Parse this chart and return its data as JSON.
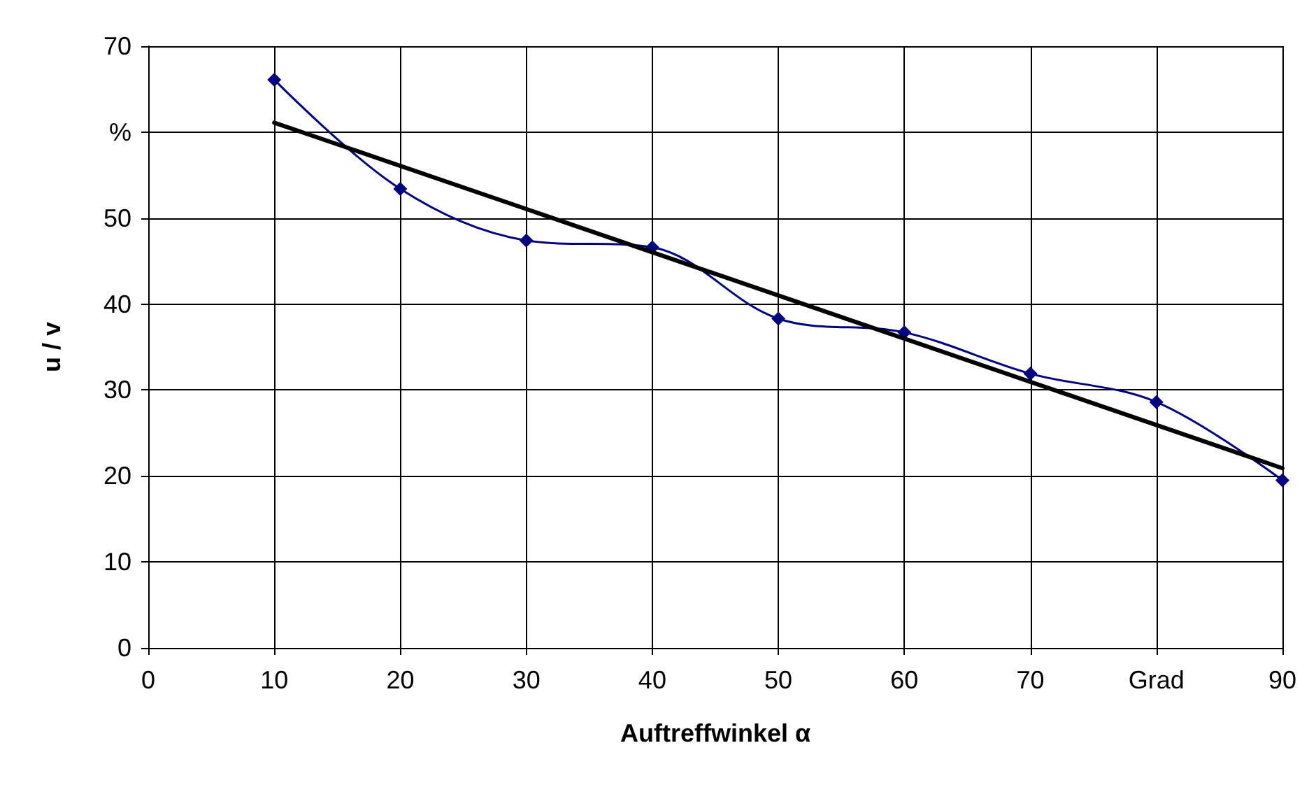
{
  "chart_data": {
    "type": "line",
    "xlabel": "Auftreffwinkel α",
    "ylabel": "u / v",
    "xlim": [
      0,
      90
    ],
    "xticks": [
      0,
      10,
      20,
      30,
      40,
      50,
      60,
      70,
      {
        "value": 80,
        "label": "Grad"
      },
      90
    ],
    "ylim": [
      0,
      70
    ],
    "yticks": [
      0,
      10,
      20,
      30,
      40,
      50,
      {
        "value": 60,
        "label": "%"
      },
      70
    ],
    "grid": true,
    "series": [
      {
        "color": "#000080",
        "marker": "diamond",
        "x": [
          10,
          20,
          30,
          40,
          50,
          60,
          70,
          80,
          90
        ],
        "values": [
          66.1,
          53.4,
          47.4,
          46.6,
          38.3,
          36.7,
          31.9,
          28.6,
          19.5
        ]
      },
      {
        "color": "#000000",
        "marker": "none",
        "x": [
          10,
          90
        ],
        "values": [
          61.1,
          20.9
        ]
      }
    ]
  }
}
